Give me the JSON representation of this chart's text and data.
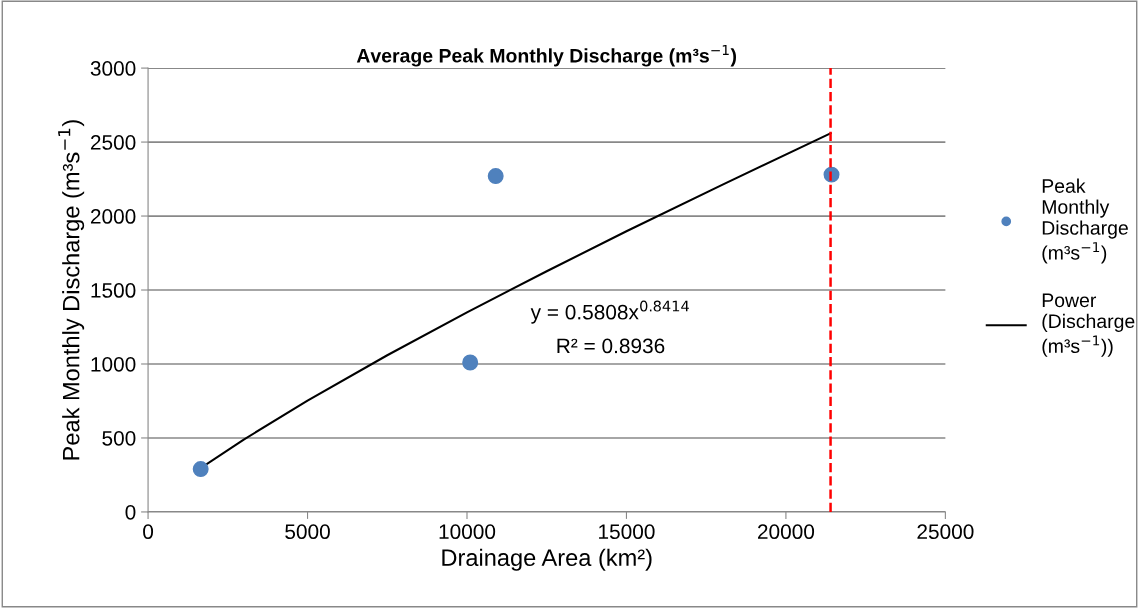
{
  "chart_data": {
    "type": "scatter",
    "title": "Average Peak Monthly Discharge (m³s$^{−1}$)",
    "xlabel": "Drainage Area (km²)",
    "ylabel": "Peak Monthly Discharge (m³s$^{−1}$)",
    "series": [
      {
        "name": "Peak Monthly Discharge (m³s$^{−1}$)",
        "color": "#4f81bd",
        "marker": "circle",
        "x": [
          1650,
          10100,
          10900,
          21430
        ],
        "values": [
          290,
          1010,
          2270,
          2280
        ]
      },
      {
        "name": "Power (Discharge (m³s$^{−1}$))",
        "type": "line",
        "color": "#000000",
        "marker": "none",
        "line_style": "solid",
        "x": [
          1650,
          3000,
          5000,
          7500,
          10000,
          12500,
          15000,
          18000,
          21400
        ],
        "values": [
          296,
          489,
          752,
          1059,
          1349,
          1627,
          1897,
          2211,
          2559
        ]
      }
    ],
    "annotations": [
      "y = 0.5808x$^{0.8414}$",
      "R² = 0.8936"
    ],
    "ref_lines": [
      {
        "axis": "x",
        "value": 21400,
        "label": null,
        "color": "#ff0000",
        "line_style": "dashed"
      }
    ],
    "xlim": [
      0,
      25000
    ],
    "xticks": [
      0,
      5000,
      10000,
      15000,
      20000,
      25000
    ],
    "ylim": [
      0,
      3000
    ],
    "yticks": [
      0,
      500,
      1000,
      1500,
      2000,
      2500,
      3000
    ],
    "grid": "y",
    "legend": "right"
  }
}
